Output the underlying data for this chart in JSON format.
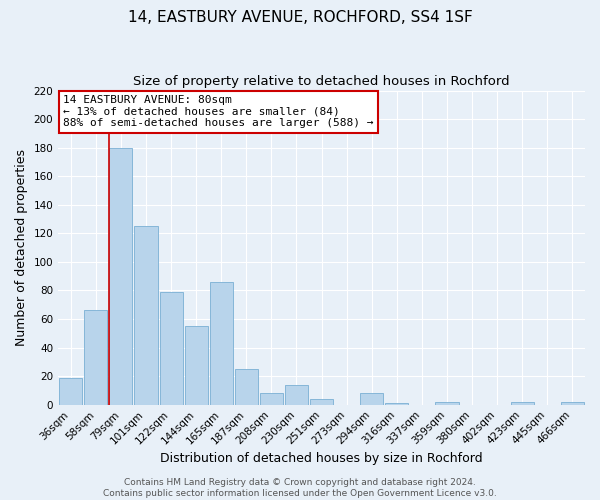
{
  "title": "14, EASTBURY AVENUE, ROCHFORD, SS4 1SF",
  "subtitle": "Size of property relative to detached houses in Rochford",
  "xlabel": "Distribution of detached houses by size in Rochford",
  "ylabel": "Number of detached properties",
  "categories": [
    "36sqm",
    "58sqm",
    "79sqm",
    "101sqm",
    "122sqm",
    "144sqm",
    "165sqm",
    "187sqm",
    "208sqm",
    "230sqm",
    "251sqm",
    "273sqm",
    "294sqm",
    "316sqm",
    "337sqm",
    "359sqm",
    "380sqm",
    "402sqm",
    "423sqm",
    "445sqm",
    "466sqm"
  ],
  "values": [
    19,
    66,
    180,
    125,
    79,
    55,
    86,
    25,
    8,
    14,
    4,
    0,
    8,
    1,
    0,
    2,
    0,
    0,
    2,
    0,
    2
  ],
  "bar_color": "#b8d4eb",
  "bar_edge_color": "#7aafd4",
  "vline_x_index": 2,
  "vline_color": "#cc0000",
  "ylim": [
    0,
    220
  ],
  "yticks": [
    0,
    20,
    40,
    60,
    80,
    100,
    120,
    140,
    160,
    180,
    200,
    220
  ],
  "annotation_title": "14 EASTBURY AVENUE: 80sqm",
  "annotation_line1": "← 13% of detached houses are smaller (84)",
  "annotation_line2": "88% of semi-detached houses are larger (588) →",
  "annotation_box_color": "#ffffff",
  "annotation_box_edge": "#cc0000",
  "footer_line1": "Contains HM Land Registry data © Crown copyright and database right 2024.",
  "footer_line2": "Contains public sector information licensed under the Open Government Licence v3.0.",
  "bg_color": "#e8f0f8",
  "grid_color": "#ffffff",
  "title_fontsize": 11,
  "subtitle_fontsize": 9.5,
  "axis_label_fontsize": 9,
  "tick_fontsize": 7.5,
  "annotation_fontsize": 8,
  "footer_fontsize": 6.5
}
